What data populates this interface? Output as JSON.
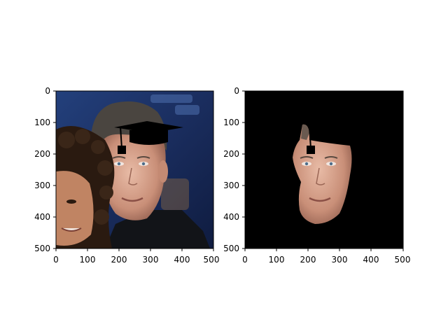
{
  "panels": [
    {
      "id": "left",
      "content": "original-photo-with-graduation-cap",
      "x_ticks": [
        "0",
        "100",
        "200",
        "300",
        "400",
        "500"
      ],
      "y_ticks": [
        "0",
        "100",
        "200",
        "300",
        "400",
        "500"
      ]
    },
    {
      "id": "right",
      "content": "segmented-face-on-black-with-graduation-cap",
      "x_ticks": [
        "0",
        "100",
        "200",
        "300",
        "400",
        "500"
      ],
      "y_ticks": [
        "0",
        "100",
        "200",
        "300",
        "400",
        "500"
      ]
    }
  ],
  "colors": {
    "photo_background": "#1b2f66",
    "mask_background": "#000000",
    "skin": "#d7a48c",
    "hair": "#4a4540",
    "cap": "#000000"
  }
}
